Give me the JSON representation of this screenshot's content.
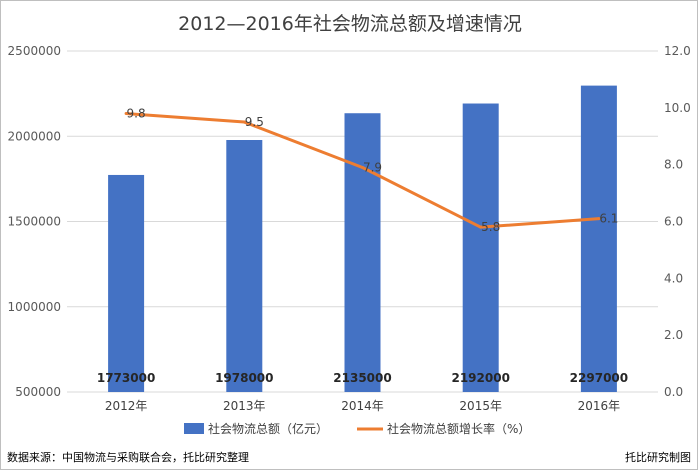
{
  "chart_data": {
    "type": "bar",
    "title": "2012—2016年社会物流总额及增速情况",
    "categories": [
      "2012年",
      "2013年",
      "2014年",
      "2015年",
      "2016年"
    ],
    "series": [
      {
        "name": "社会物流总额（亿元）",
        "type": "bar",
        "axis": "left",
        "color": "#4472c4",
        "values": [
          1773000,
          1978000,
          2135000,
          2192000,
          2297000
        ],
        "labels": [
          "1773000",
          "1978000",
          "2135000",
          "2192000",
          "2297000"
        ]
      },
      {
        "name": "社会物流总额增长率（%）",
        "type": "line",
        "axis": "right",
        "color": "#ed7d31",
        "values": [
          9.8,
          9.5,
          7.9,
          5.8,
          6.1
        ],
        "labels": [
          "9.8",
          "9.5",
          "7.9",
          "5.8",
          "6.1"
        ]
      }
    ],
    "y_left": {
      "ylim": [
        500000,
        2500000
      ],
      "ticks": [
        500000,
        1000000,
        1500000,
        2000000,
        2500000
      ],
      "tick_labels": [
        "500000",
        "1000000",
        "1500000",
        "2000000",
        "2500000"
      ]
    },
    "y_right": {
      "ylim": [
        0,
        12
      ],
      "ticks": [
        0,
        2,
        4,
        6,
        8,
        10,
        12
      ],
      "tick_labels": [
        "0.0",
        "2.0",
        "4.0",
        "6.0",
        "8.0",
        "10.0",
        "12.0"
      ]
    },
    "grid": true,
    "legend_position": "bottom"
  },
  "footer": {
    "source": "数据来源：中国物流与采购联合会，托比研究整理",
    "credit": "托比研究制图"
  }
}
